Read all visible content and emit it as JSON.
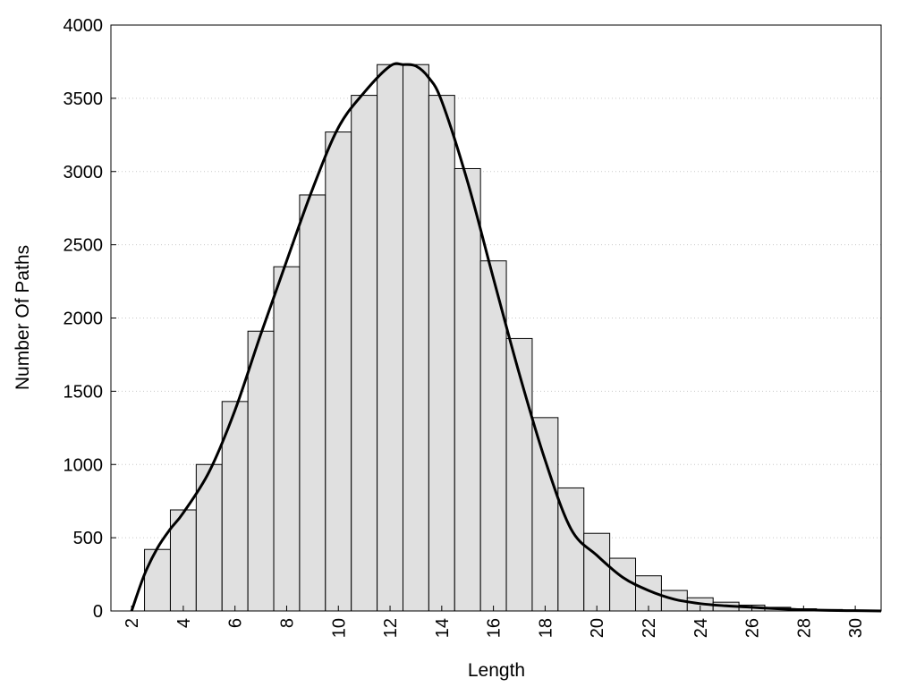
{
  "chart_data": {
    "type": "bar",
    "title": "",
    "xlabel": "Length",
    "ylabel": "Number Of Paths",
    "xlim": [
      1.2,
      31
    ],
    "ylim": [
      0,
      4000
    ],
    "grid": "horizontal-dotted",
    "legend": "none",
    "x_ticks": [
      2,
      4,
      6,
      8,
      10,
      12,
      14,
      16,
      18,
      20,
      22,
      24,
      26,
      28,
      30
    ],
    "y_ticks": [
      0,
      500,
      1000,
      1500,
      2000,
      2500,
      3000,
      3500,
      4000
    ],
    "bin_width": 1,
    "categories": [
      3,
      4,
      5,
      6,
      7,
      8,
      9,
      10,
      11,
      12,
      13,
      14,
      15,
      16,
      17,
      18,
      19,
      20,
      21,
      22,
      23,
      24,
      25,
      26,
      27,
      28,
      29,
      30
    ],
    "series": [
      {
        "type": "bar",
        "values": [
          420,
          690,
          1000,
          1430,
          1910,
          2350,
          2840,
          3270,
          3520,
          3730,
          3730,
          3520,
          3020,
          2390,
          1860,
          1320,
          840,
          530,
          360,
          240,
          140,
          90,
          60,
          40,
          25,
          15,
          10,
          5
        ],
        "color": "#e0e0e0"
      },
      {
        "type": "line",
        "x": [
          2,
          2.5,
          3,
          3.5,
          4,
          5,
          6,
          7,
          8,
          9,
          10,
          11,
          12,
          12.5,
          13,
          13.5,
          14,
          15,
          16,
          17,
          18,
          19,
          20,
          21,
          22,
          23,
          24,
          25,
          26,
          27,
          28,
          29,
          30,
          31
        ],
        "values": [
          0,
          250,
          430,
          560,
          670,
          950,
          1370,
          1890,
          2390,
          2880,
          3300,
          3540,
          3720,
          3730,
          3720,
          3640,
          3480,
          2930,
          2270,
          1620,
          1030,
          560,
          380,
          230,
          140,
          80,
          50,
          35,
          25,
          15,
          8,
          4,
          2,
          0
        ],
        "color": "#000000"
      }
    ]
  }
}
